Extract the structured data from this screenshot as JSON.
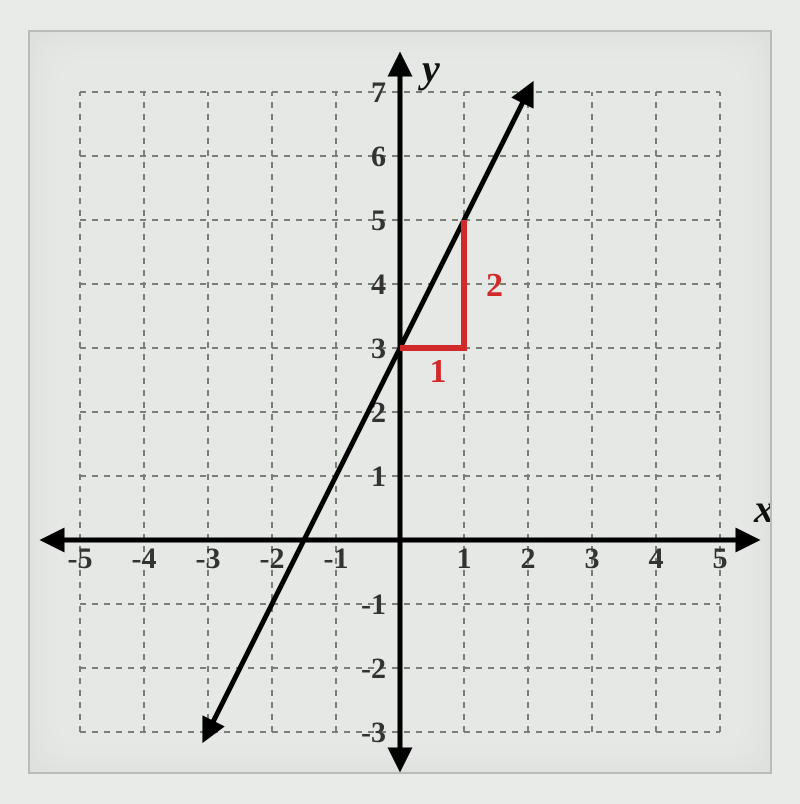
{
  "chart": {
    "type": "line",
    "background_color": "#e5e8e5",
    "grid_color": "#778077",
    "grid_dash": "6,6",
    "grid_stroke_width": 2,
    "axis_color": "#000000",
    "axis_stroke_width": 5,
    "line_color": "#000000",
    "line_stroke_width": 5,
    "slope_triangle_color": "#d22a2a",
    "slope_triangle_stroke_width": 6,
    "x_axis_label": "x",
    "y_axis_label": "y",
    "axis_label_fontsize": 40,
    "tick_label_fontsize": 30,
    "slope_label_fontsize": 34,
    "xmin": -5,
    "xmax": 5,
    "ymin": -3,
    "ymax": 7,
    "xtick_step": 1,
    "ytick_step": 1,
    "line_points": [
      [
        -3,
        -3
      ],
      [
        2,
        7
      ]
    ],
    "slope_triangle": {
      "from": [
        0,
        3
      ],
      "to": [
        1,
        5
      ],
      "run_label": "1",
      "rise_label": "2"
    }
  }
}
